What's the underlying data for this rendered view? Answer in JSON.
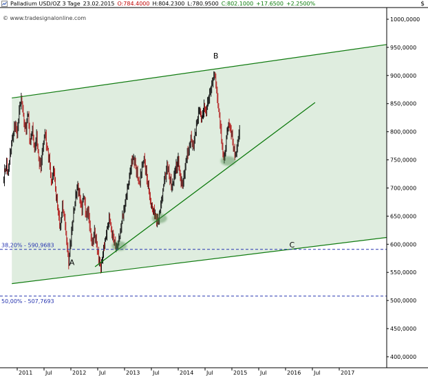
{
  "header": {
    "title": "Palladium USD/OZ 3 Tage",
    "date": "23.02.2015",
    "open": "O:784.4000",
    "high": "H:804.2300",
    "low": "L:780.9500",
    "close": "C:802.1000",
    "change_abs": "+17.6500",
    "change_pct": "+2.2500%",
    "watermark": "© www.tradesignalonline.com",
    "currency": "$"
  },
  "chart_data": {
    "type": "candlestick",
    "title": "Palladium USD/OZ 3 Tage",
    "last_bar": {
      "date": "23.02.2015",
      "open": 784.4,
      "high": 804.23,
      "low": 780.95,
      "close": 802.1,
      "change": 17.65,
      "change_pct": 2.25
    },
    "y_axis": {
      "min": 380,
      "max": 1022,
      "tick_values": [
        1000,
        950,
        900,
        850,
        800,
        750,
        700,
        650,
        600,
        550,
        500,
        450,
        400
      ],
      "tick_labels": [
        "1000,0000",
        "950,0000",
        "900,0000",
        "850,0000",
        "800,0000",
        "750,0000",
        "700,0000",
        "650,0000",
        "600,0000",
        "550,0000",
        "500,0000",
        "450,0000",
        "400,0000"
      ]
    },
    "x_axis": {
      "ticks": [
        [
          2011,
          "2011"
        ],
        [
          2011.5,
          "Jul"
        ],
        [
          2012,
          "2012"
        ],
        [
          2012.5,
          "Jul"
        ],
        [
          2013,
          "2013"
        ],
        [
          2013.5,
          "Jul"
        ],
        [
          2014,
          "2014"
        ],
        [
          2014.5,
          "Jul"
        ],
        [
          2015,
          "2015"
        ],
        [
          2015.5,
          "Jul"
        ],
        [
          2016,
          "2016"
        ],
        [
          2016.5,
          "Jul"
        ],
        [
          2017,
          "2017"
        ]
      ]
    },
    "close_path": [
      [
        2010.75,
        718
      ],
      [
        2010.79,
        742
      ],
      [
        2010.83,
        728
      ],
      [
        2010.87,
        762
      ],
      [
        2010.91,
        788
      ],
      [
        2010.95,
        812
      ],
      [
        2011.0,
        795
      ],
      [
        2011.04,
        842
      ],
      [
        2011.08,
        858
      ],
      [
        2011.12,
        822
      ],
      [
        2011.16,
        800
      ],
      [
        2011.2,
        836
      ],
      [
        2011.24,
        778
      ],
      [
        2011.28,
        806
      ],
      [
        2011.32,
        768
      ],
      [
        2011.36,
        792
      ],
      [
        2011.4,
        752
      ],
      [
        2011.44,
        742
      ],
      [
        2011.48,
        774
      ],
      [
        2011.52,
        798
      ],
      [
        2011.56,
        768
      ],
      [
        2011.6,
        748
      ],
      [
        2011.64,
        706
      ],
      [
        2011.68,
        736
      ],
      [
        2011.72,
        692
      ],
      [
        2011.76,
        662
      ],
      [
        2011.8,
        628
      ],
      [
        2011.84,
        668
      ],
      [
        2011.88,
        645
      ],
      [
        2011.92,
        608
      ],
      [
        2011.96,
        568
      ],
      [
        2012.0,
        612
      ],
      [
        2012.04,
        648
      ],
      [
        2012.08,
        678
      ],
      [
        2012.12,
        704
      ],
      [
        2012.16,
        686
      ],
      [
        2012.2,
        662
      ],
      [
        2012.24,
        688
      ],
      [
        2012.28,
        648
      ],
      [
        2012.32,
        658
      ],
      [
        2012.36,
        624
      ],
      [
        2012.4,
        600
      ],
      [
        2012.44,
        626
      ],
      [
        2012.48,
        596
      ],
      [
        2012.52,
        572
      ],
      [
        2012.56,
        562
      ],
      [
        2012.6,
        586
      ],
      [
        2012.64,
        606
      ],
      [
        2012.68,
        632
      ],
      [
        2012.72,
        645
      ],
      [
        2012.76,
        622
      ],
      [
        2012.8,
        605
      ],
      [
        2012.84,
        596
      ],
      [
        2012.88,
        600
      ],
      [
        2012.92,
        622
      ],
      [
        2012.96,
        648
      ],
      [
        2013.0,
        668
      ],
      [
        2013.04,
        690
      ],
      [
        2013.08,
        714
      ],
      [
        2013.12,
        738
      ],
      [
        2013.16,
        756
      ],
      [
        2013.2,
        742
      ],
      [
        2013.24,
        722
      ],
      [
        2013.28,
        706
      ],
      [
        2013.32,
        736
      ],
      [
        2013.36,
        752
      ],
      [
        2013.4,
        728
      ],
      [
        2013.44,
        700
      ],
      [
        2013.48,
        678
      ],
      [
        2013.52,
        660
      ],
      [
        2013.56,
        650
      ],
      [
        2013.6,
        644
      ],
      [
        2013.64,
        648
      ],
      [
        2013.68,
        672
      ],
      [
        2013.72,
        700
      ],
      [
        2013.76,
        722
      ],
      [
        2013.8,
        740
      ],
      [
        2013.84,
        720
      ],
      [
        2013.88,
        700
      ],
      [
        2013.92,
        722
      ],
      [
        2013.96,
        736
      ],
      [
        2014.0,
        748
      ],
      [
        2014.04,
        718
      ],
      [
        2014.08,
        702
      ],
      [
        2014.12,
        730
      ],
      [
        2014.16,
        756
      ],
      [
        2014.2,
        772
      ],
      [
        2014.24,
        788
      ],
      [
        2014.28,
        772
      ],
      [
        2014.32,
        802
      ],
      [
        2014.36,
        824
      ],
      [
        2014.4,
        840
      ],
      [
        2014.44,
        818
      ],
      [
        2014.48,
        846
      ],
      [
        2014.52,
        834
      ],
      [
        2014.56,
        858
      ],
      [
        2014.6,
        872
      ],
      [
        2014.64,
        890
      ],
      [
        2014.68,
        905
      ],
      [
        2014.71,
        878
      ],
      [
        2014.74,
        846
      ],
      [
        2014.77,
        824
      ],
      [
        2014.8,
        796
      ],
      [
        2014.83,
        760
      ],
      [
        2014.86,
        752
      ],
      [
        2014.89,
        782
      ],
      [
        2014.92,
        806
      ],
      [
        2014.95,
        816
      ],
      [
        2014.98,
        798
      ],
      [
        2015.01,
        786
      ],
      [
        2015.04,
        764
      ],
      [
        2015.07,
        758
      ],
      [
        2015.1,
        778
      ],
      [
        2015.13,
        796
      ],
      [
        2015.155,
        802.1
      ]
    ],
    "channel": {
      "upper": [
        [
          2010.9,
          860
        ],
        [
          2017.88,
          955
        ]
      ],
      "lower": [
        [
          2010.9,
          530
        ],
        [
          2017.88,
          612
        ]
      ]
    },
    "trendline": [
      [
        2012.45,
        560
      ],
      [
        2016.55,
        852
      ]
    ],
    "fib_levels": [
      {
        "label": "38,20% - 590,9683",
        "value": 590.9683,
        "label_position": "above"
      },
      {
        "label": "50,00% - 507,7693",
        "value": 507.7693,
        "label_position": "below"
      }
    ],
    "wave_labels": [
      {
        "text": "A",
        "t": 2012.02,
        "price": 568
      },
      {
        "text": "B",
        "t": 2014.7,
        "price": 935
      },
      {
        "text": "C",
        "t": 2016.12,
        "price": 599
      }
    ],
    "ellipse_markers": [
      [
        2012.9,
        597
      ],
      [
        2013.65,
        646
      ],
      [
        2014.93,
        748
      ]
    ],
    "colors": {
      "up": "#161616",
      "down": "#b42222",
      "channel_line": "#0e7a0e",
      "channel_fill": "rgba(30,125,30,0.14)",
      "fib": "#2634b0",
      "label": "#000000"
    }
  }
}
